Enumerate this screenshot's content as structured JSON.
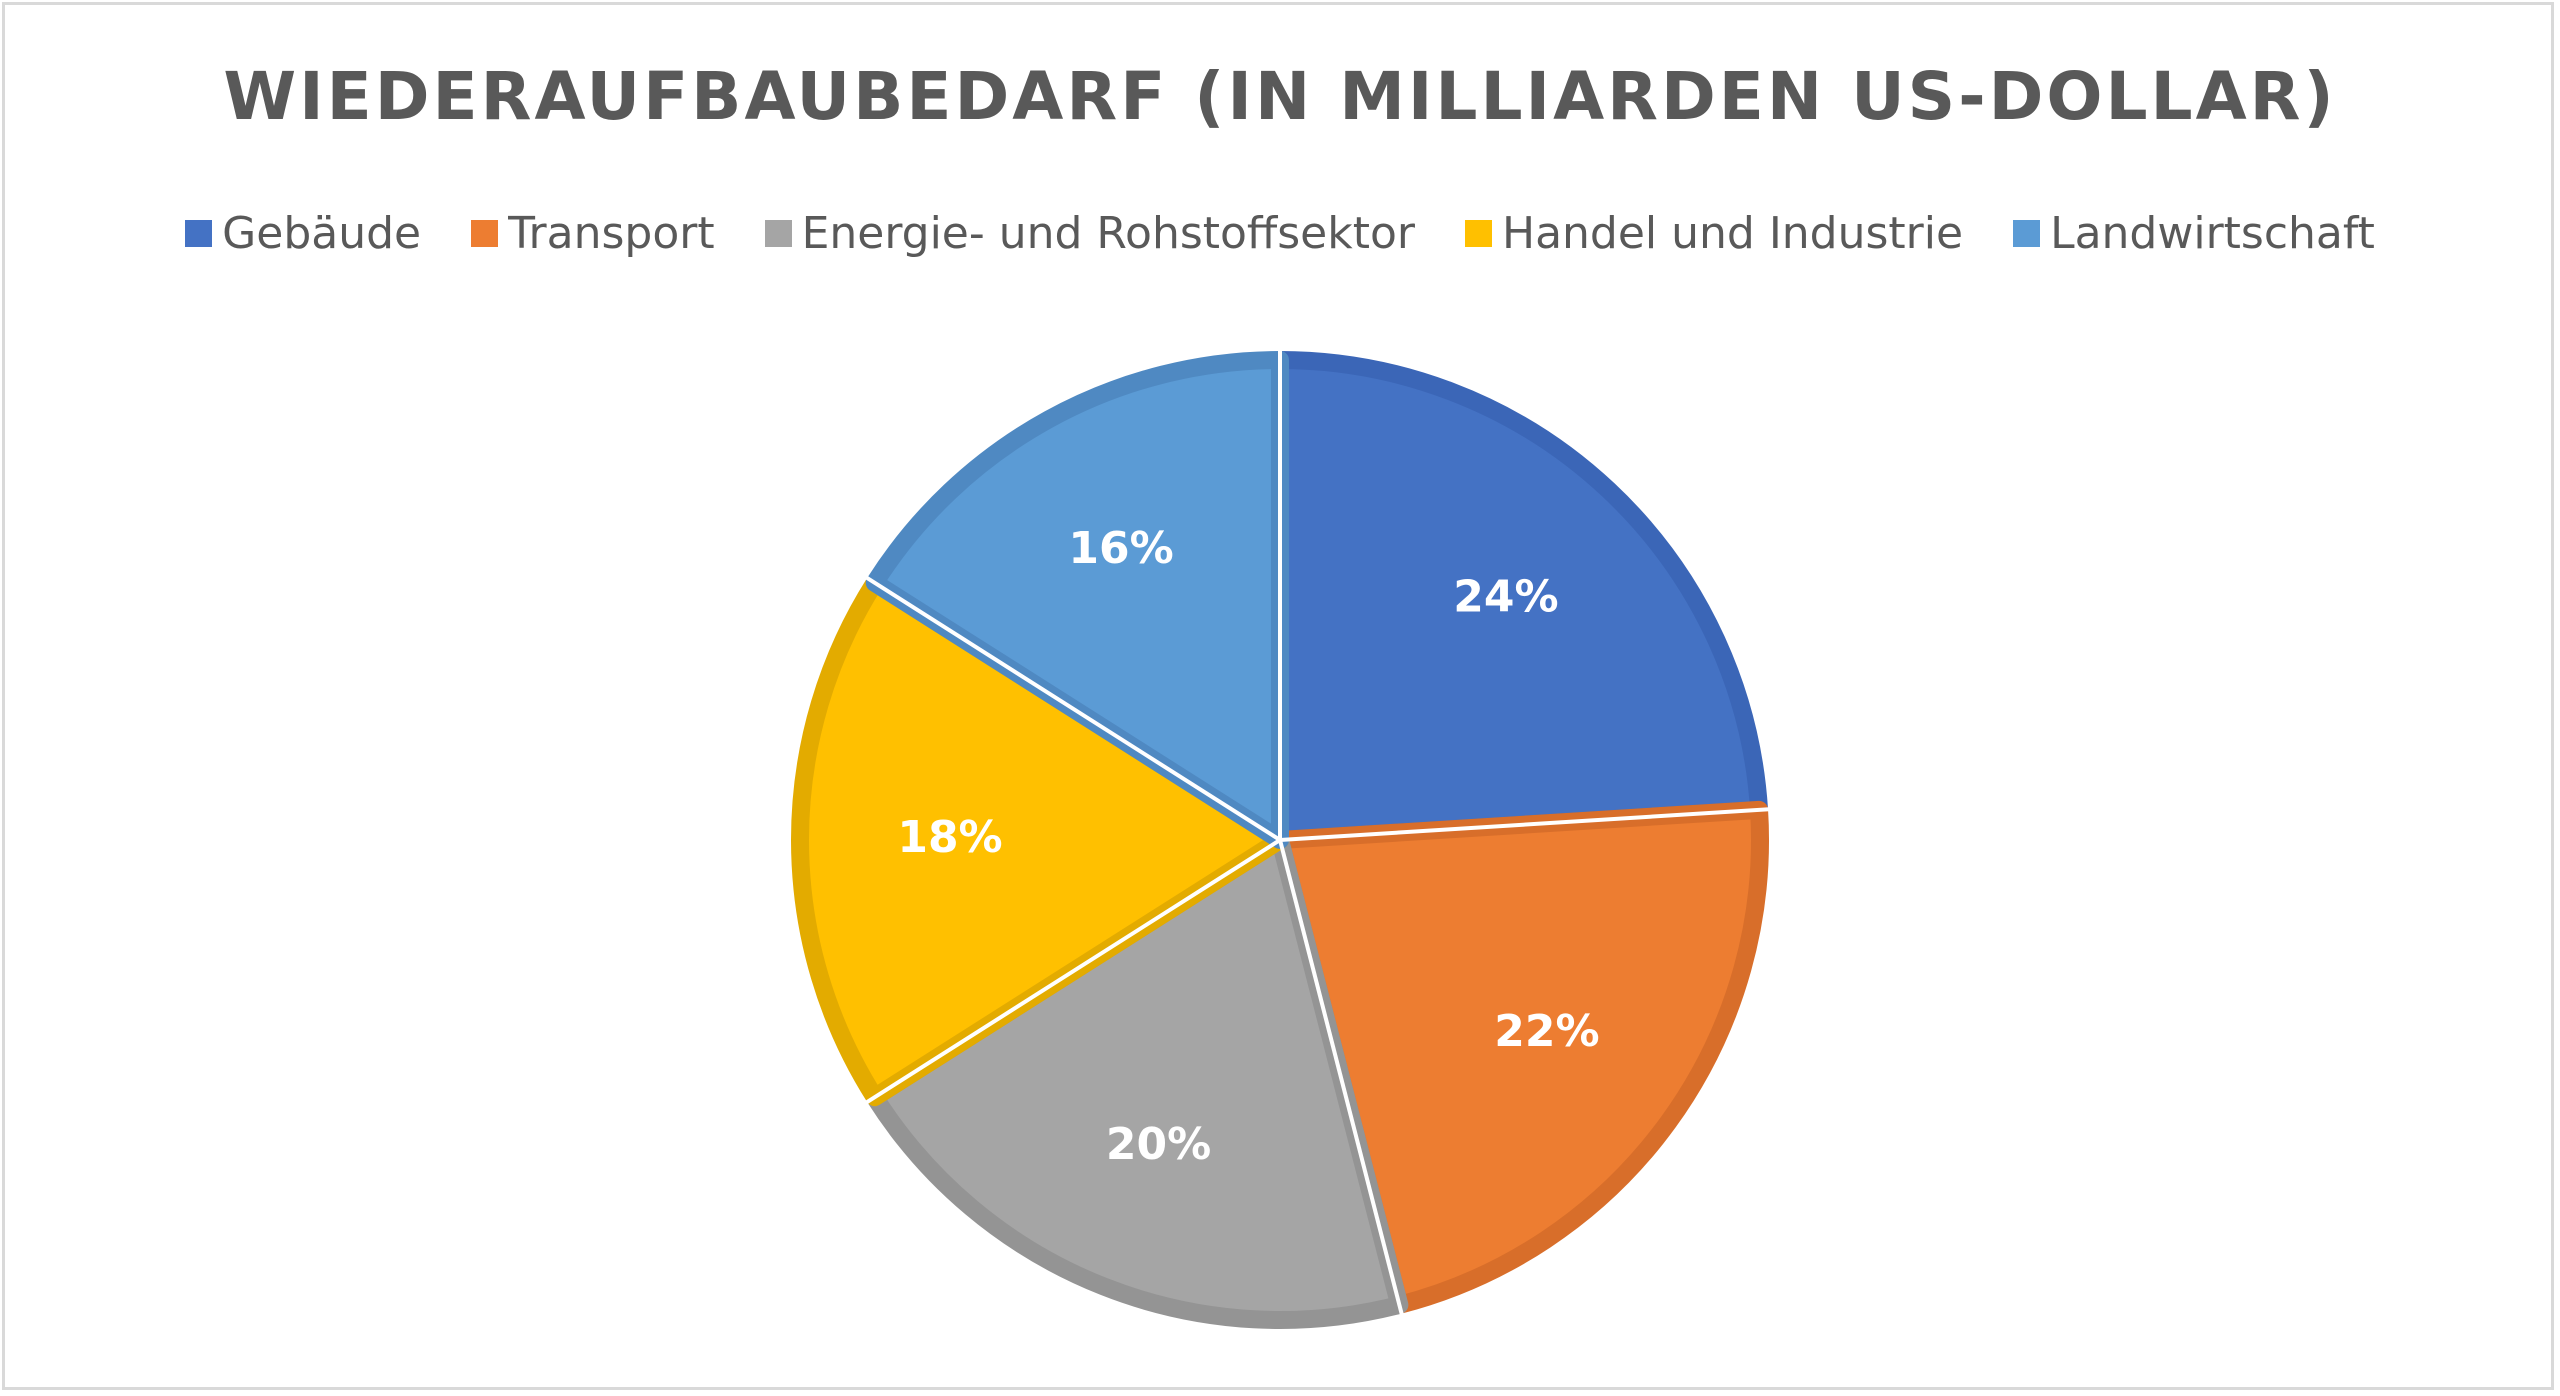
{
  "chart_data": {
    "type": "pie",
    "title": "WIEDERAUFBAUBEDARF (IN MILLIARDEN US-DOLLAR)",
    "legend_position": "top",
    "slices": [
      {
        "name": "Gebäude",
        "value": 24,
        "label": "24%",
        "color": "#4472C4",
        "border": "#3B66B7"
      },
      {
        "name": "Transport",
        "value": 22,
        "label": "22%",
        "color": "#ED7D31",
        "border": "#D86E2A"
      },
      {
        "name": "Energie- und Rohstoffsektor",
        "value": 20,
        "label": "20%",
        "color": "#A5A5A5",
        "border": "#949494"
      },
      {
        "name": "Handel und Industrie",
        "value": 18,
        "label": "18%",
        "color": "#FFC000",
        "border": "#E3AB00"
      },
      {
        "name": "Landwirtschaft",
        "value": 16,
        "label": "16%",
        "color": "#5B9BD5",
        "border": "#4F89C2"
      }
    ]
  }
}
